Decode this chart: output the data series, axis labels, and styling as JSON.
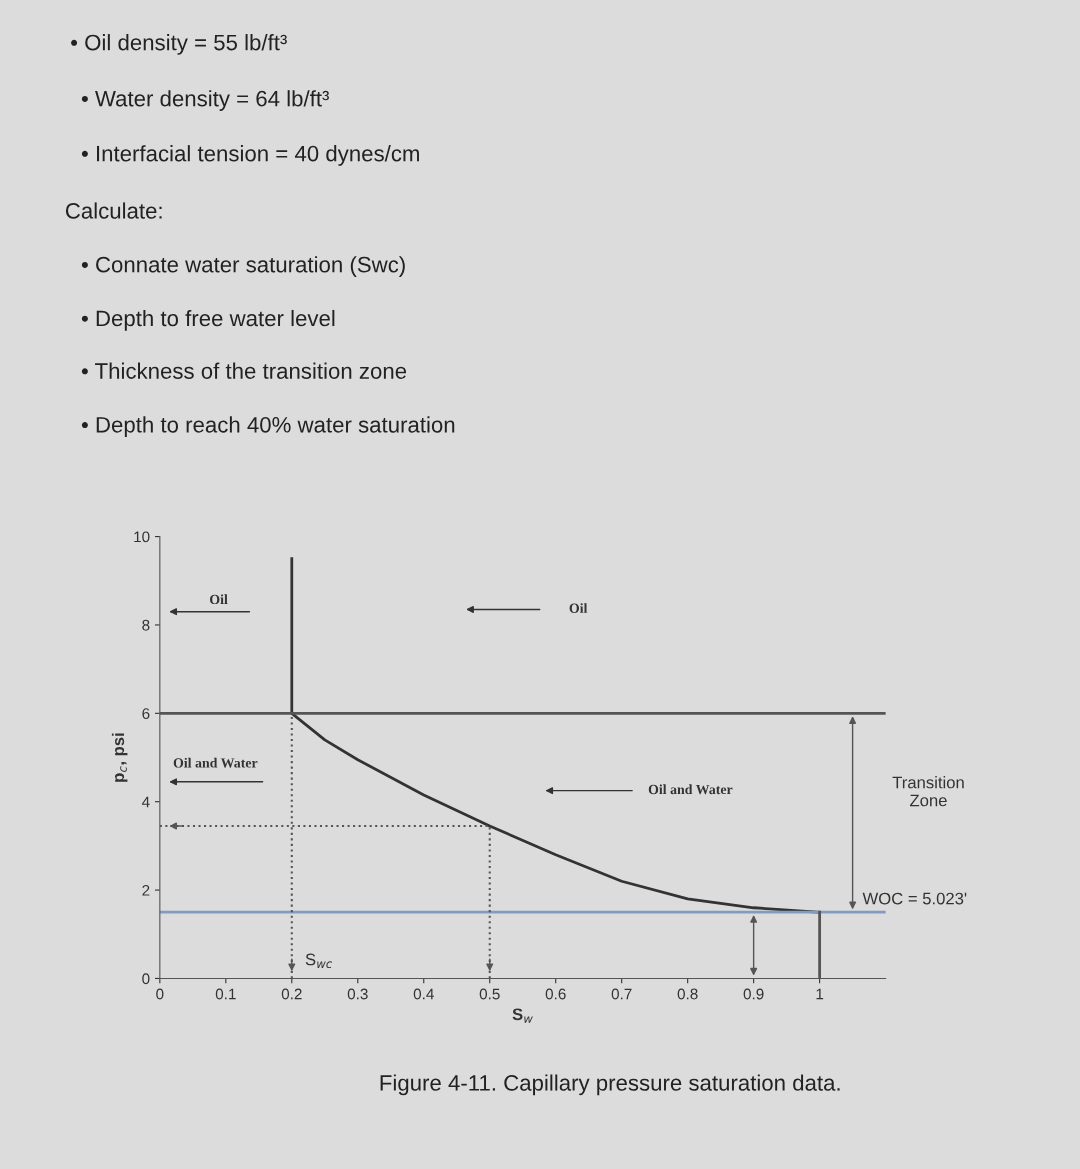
{
  "chart_data": {
    "type": "line",
    "xlabel": "S$_{w}$",
    "ylabel": "p$_{c}$, psi",
    "xlim": [
      0,
      1.1
    ],
    "xticks": [
      0,
      0.1,
      0.2,
      0.3,
      0.4,
      0.5,
      0.6,
      0.7,
      0.8,
      0.9,
      1
    ],
    "ylim": [
      0,
      10
    ],
    "yticks": [
      0,
      2,
      4,
      6,
      8,
      10
    ],
    "grid": false,
    "marker": "none",
    "line_style": "solid",
    "series": [
      {
        "color": "#333333",
        "x": [
          0.2,
          0.2,
          0.25,
          0.3,
          0.4,
          0.5,
          0.6,
          0.7,
          0.8,
          0.9,
          1.0
        ],
        "values": [
          9.5,
          6.0,
          5.4,
          4.95,
          4.15,
          3.45,
          2.8,
          2.2,
          1.8,
          1.6,
          1.5
        ]
      }
    ],
    "ref_lines": [
      {
        "axis": "y",
        "value": 6,
        "color": "#555555",
        "line_style": "solid"
      },
      {
        "axis": "y",
        "value": 1.5,
        "color": "#7f9cc4",
        "line_style": "solid"
      },
      {
        "axis": "x",
        "value": 0.2,
        "label": "S$_{wc}$",
        "color": "#555555",
        "line_style": "dotted"
      },
      {
        "axis": "x",
        "value": 0.5,
        "color": "#555555",
        "line_style": "dotted"
      },
      {
        "axis": "y",
        "value": 3.45,
        "color": "#555555",
        "line_style": "dotted"
      },
      {
        "axis": "x",
        "value": 1,
        "color": "#555555",
        "line_style": "solid"
      }
    ],
    "annotations": [
      "• Oil density = 55 lb/ft³",
      "• Water density = 64 lb/ft³",
      "• Interfacial tension = 40 dynes/cm",
      "Calculate:",
      "• Connate water saturation (Swc)",
      "• Depth to free water level",
      "• Thickness of the transition zone",
      "• Depth to reach 40% water saturation",
      "Oil",
      "Oil",
      "Oil and Water",
      "Oil and Water",
      "Transition\nZone",
      "WOC = 5.023'",
      "Figure 4-11. Capillary pressure saturation data."
    ]
  }
}
